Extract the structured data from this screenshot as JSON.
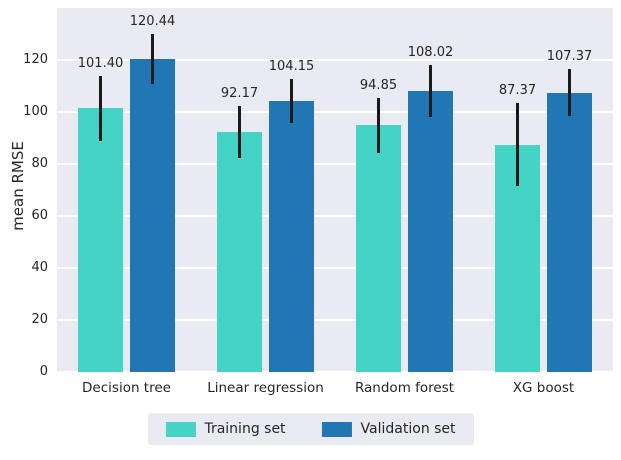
{
  "chart_data": {
    "type": "bar",
    "title": "",
    "xlabel": "",
    "ylabel": "mean RMSE",
    "ylim": [
      0,
      140
    ],
    "yticks": [
      0,
      20,
      40,
      60,
      80,
      100,
      120
    ],
    "categories": [
      "Decision tree",
      "Linear regression",
      "Random forest",
      "XG boost"
    ],
    "series": [
      {
        "name": "Training set",
        "color": "#44d3c5",
        "values": [
          101.4,
          92.17,
          94.85,
          87.37
        ],
        "errors": [
          12.5,
          10.0,
          10.5,
          16.0
        ],
        "value_labels": [
          "101.40",
          "92.17",
          "94.85",
          "87.37"
        ]
      },
      {
        "name": "Validation set",
        "color": "#2177b4",
        "values": [
          120.44,
          104.15,
          108.02,
          107.37
        ],
        "errors": [
          9.5,
          8.5,
          10.0,
          9.0
        ],
        "value_labels": [
          "120.44",
          "104.15",
          "108.02",
          "107.37"
        ]
      }
    ],
    "grid": true,
    "legend_position": "bottom",
    "plot_bg": "#eaeaf2",
    "grid_color": "#ffffff",
    "text_color": "#262626",
    "errorbar_color": "#1a1a1a"
  }
}
